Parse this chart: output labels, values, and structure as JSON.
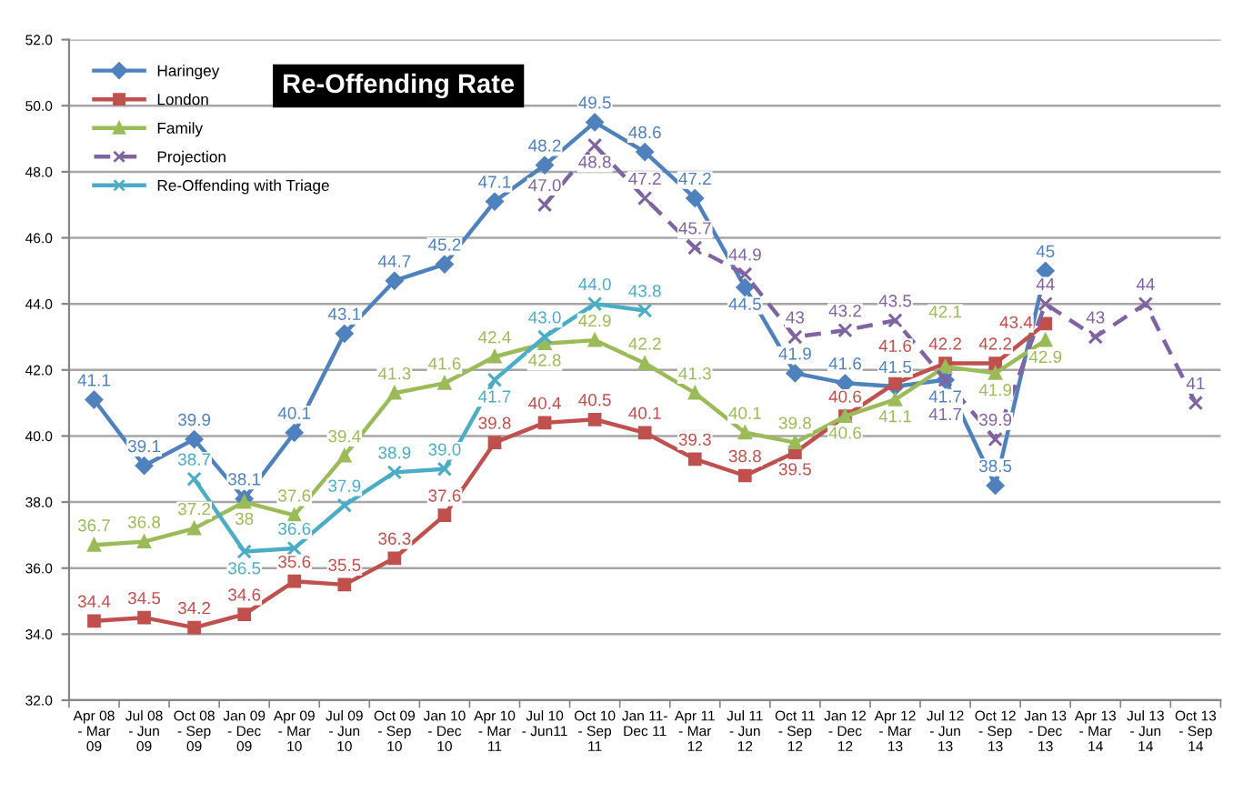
{
  "chart_data": {
    "type": "line",
    "title": "Re-Offending Rate",
    "categories": [
      "Apr 08 - Mar 09",
      "Jul 08 - Jun 09",
      "Oct 08 - Sep 09",
      "Jan 09 - Dec 09",
      "Apr 09 - Mar 10",
      "Jul 09 - Jun 10",
      "Oct 09 - Sep 10",
      "Jan 10 - Dec 10",
      "Apr 10 - Mar 11",
      "Jul 10 - Jun11",
      "Oct 10 - Sep 11",
      "Jan 11- Dec 11",
      "Apr 11 - Mar 12",
      "Jul 11 - Jun 12",
      "Oct 11 - Sep 12",
      "Jan 12 - Dec 12",
      "Apr 12 - Mar 13",
      "Jul 12 - Jun 13",
      "Oct 12 - Sep 13",
      "Jan 13 - Dec 13",
      "Apr 13 - Mar 14",
      "Jul 13 - Jun 14",
      "Oct 13 - Sep 14"
    ],
    "series": [
      {
        "name": "Haringey",
        "color": "#4f81bd",
        "marker": "diamond",
        "line_style": "solid",
        "values": [
          41.1,
          39.1,
          39.9,
          38.1,
          40.1,
          43.1,
          44.7,
          45.2,
          47.1,
          48.2,
          49.5,
          48.6,
          47.2,
          44.5,
          41.9,
          41.6,
          41.5,
          41.7,
          38.5,
          45,
          null,
          null,
          null
        ],
        "value_labels": [
          "41.1",
          "39.1",
          "39.9",
          "38.1",
          "40.1",
          "43.1",
          "44.7",
          "45.2",
          "47.1",
          "48.2",
          "49.5",
          "48.6",
          "47.2",
          "44.5",
          "41.9",
          "41.6",
          "41.5",
          "41.7",
          "38.5",
          "45",
          null,
          null,
          null
        ]
      },
      {
        "name": "London",
        "color": "#c0504d",
        "marker": "square",
        "line_style": "solid",
        "values": [
          34.4,
          34.5,
          34.2,
          34.6,
          35.6,
          35.5,
          36.3,
          37.6,
          39.8,
          40.4,
          40.5,
          40.1,
          39.3,
          38.8,
          39.5,
          40.6,
          41.6,
          42.2,
          42.2,
          43.4,
          null,
          null,
          null
        ],
        "value_labels": [
          "34.4",
          "34.5",
          "34.2",
          "34.6",
          "35.6",
          "35.5",
          "36.3",
          "37.6",
          "39.8",
          "40.4",
          "40.5",
          "40.1",
          "39.3",
          "38.8",
          "39.5",
          "40.6",
          "41.6",
          "42.2",
          "42.2",
          "43.4",
          null,
          null,
          null
        ]
      },
      {
        "name": "Family",
        "color": "#9bbb59",
        "marker": "triangle",
        "line_style": "solid",
        "values": [
          36.7,
          36.8,
          37.2,
          38,
          37.6,
          39.4,
          41.3,
          41.6,
          42.4,
          42.8,
          42.9,
          42.2,
          41.3,
          40.1,
          39.8,
          40.6,
          41.1,
          42.1,
          41.9,
          42.9,
          null,
          null,
          null
        ],
        "value_labels": [
          "36.7",
          "36.8",
          "37.2",
          "38",
          "37.6",
          "39.4",
          "41.3",
          "41.6",
          "42.4",
          "42.8",
          "42.9",
          "42.2",
          "41.3",
          "40.1",
          "39.8",
          "40.6",
          "41.1",
          "42.1",
          "41.9",
          "42.9",
          null,
          null,
          null
        ]
      },
      {
        "name": "Projection",
        "color": "#8064a2",
        "marker": "cross",
        "line_style": "dashed",
        "values": [
          null,
          null,
          null,
          null,
          null,
          null,
          null,
          null,
          null,
          47.0,
          48.8,
          47.2,
          45.7,
          44.9,
          43,
          43.2,
          43.5,
          41.7,
          39.9,
          44,
          43,
          44,
          41
        ],
        "value_labels": [
          null,
          null,
          null,
          null,
          null,
          null,
          null,
          null,
          null,
          "47.0",
          "48.8",
          "47.2",
          "45.7",
          "44.9",
          "43",
          "43.2",
          "43.5",
          "41.7",
          "39.9",
          "44",
          "43",
          "44",
          "41"
        ]
      },
      {
        "name": "Re-Offending with Triage",
        "color": "#4bacc6",
        "marker": "cross",
        "line_style": "solid",
        "values": [
          null,
          null,
          38.7,
          36.5,
          36.6,
          37.9,
          38.9,
          39.0,
          41.7,
          43.0,
          44.0,
          43.8,
          null,
          null,
          null,
          null,
          null,
          null,
          null,
          null,
          null,
          null,
          null
        ],
        "value_labels": [
          null,
          null,
          "38.7",
          "36.5",
          "36.6",
          "37.9",
          "38.9",
          "39.0",
          "41.7",
          "43.0",
          "44.0",
          "43.8",
          null,
          null,
          null,
          null,
          null,
          null,
          null,
          null,
          null,
          null,
          null
        ]
      }
    ],
    "ylim": [
      32,
      52
    ],
    "yticks": [
      {
        "value": 32,
        "label": "32.0"
      },
      {
        "value": 34,
        "label": "34.0"
      },
      {
        "value": 36,
        "label": "36.0"
      },
      {
        "value": 38,
        "label": "38.0"
      },
      {
        "value": 40,
        "label": "40.0"
      },
      {
        "value": 42,
        "label": "42.0"
      },
      {
        "value": 44,
        "label": "44.0"
      },
      {
        "value": 46,
        "label": "46.0"
      },
      {
        "value": 48,
        "label": "48.0"
      },
      {
        "value": 50,
        "label": "50.0"
      },
      {
        "value": 52,
        "label": "52.0"
      }
    ],
    "grid": "y",
    "legend": "top left"
  }
}
